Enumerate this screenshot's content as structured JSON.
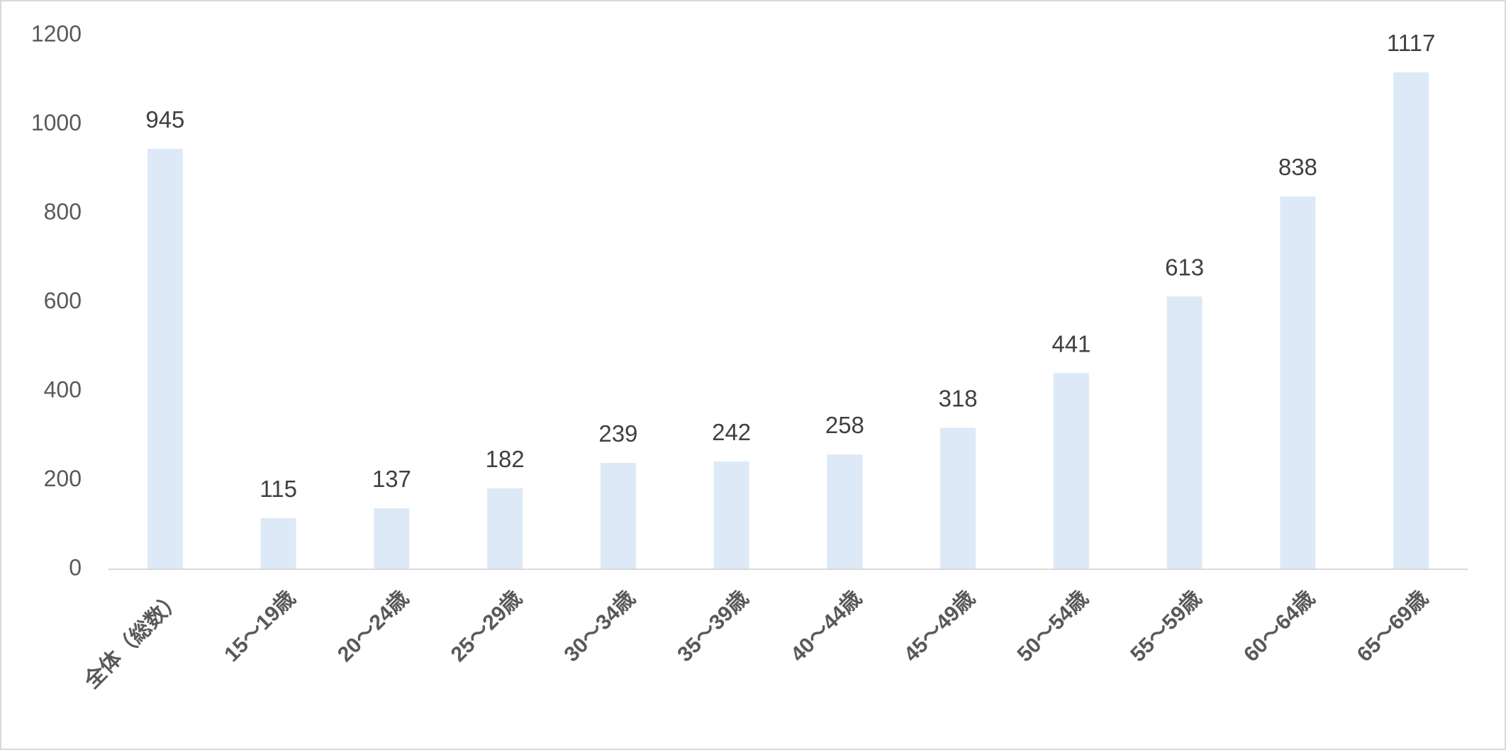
{
  "chart_data": {
    "type": "bar",
    "categories": [
      "全体（総数）",
      "15～19歳",
      "20～24歳",
      "25～29歳",
      "30～34歳",
      "35～39歳",
      "40～44歳",
      "45～49歳",
      "50～54歳",
      "55～59歳",
      "60～64歳",
      "65～69歳"
    ],
    "values": [
      945,
      115,
      137,
      182,
      239,
      242,
      258,
      318,
      441,
      613,
      838,
      1117
    ],
    "color": "#dde9f6",
    "ylim": [
      0,
      1200
    ],
    "yticks": [
      0,
      200,
      400,
      600,
      800,
      1000,
      1200
    ],
    "grid": false
  }
}
